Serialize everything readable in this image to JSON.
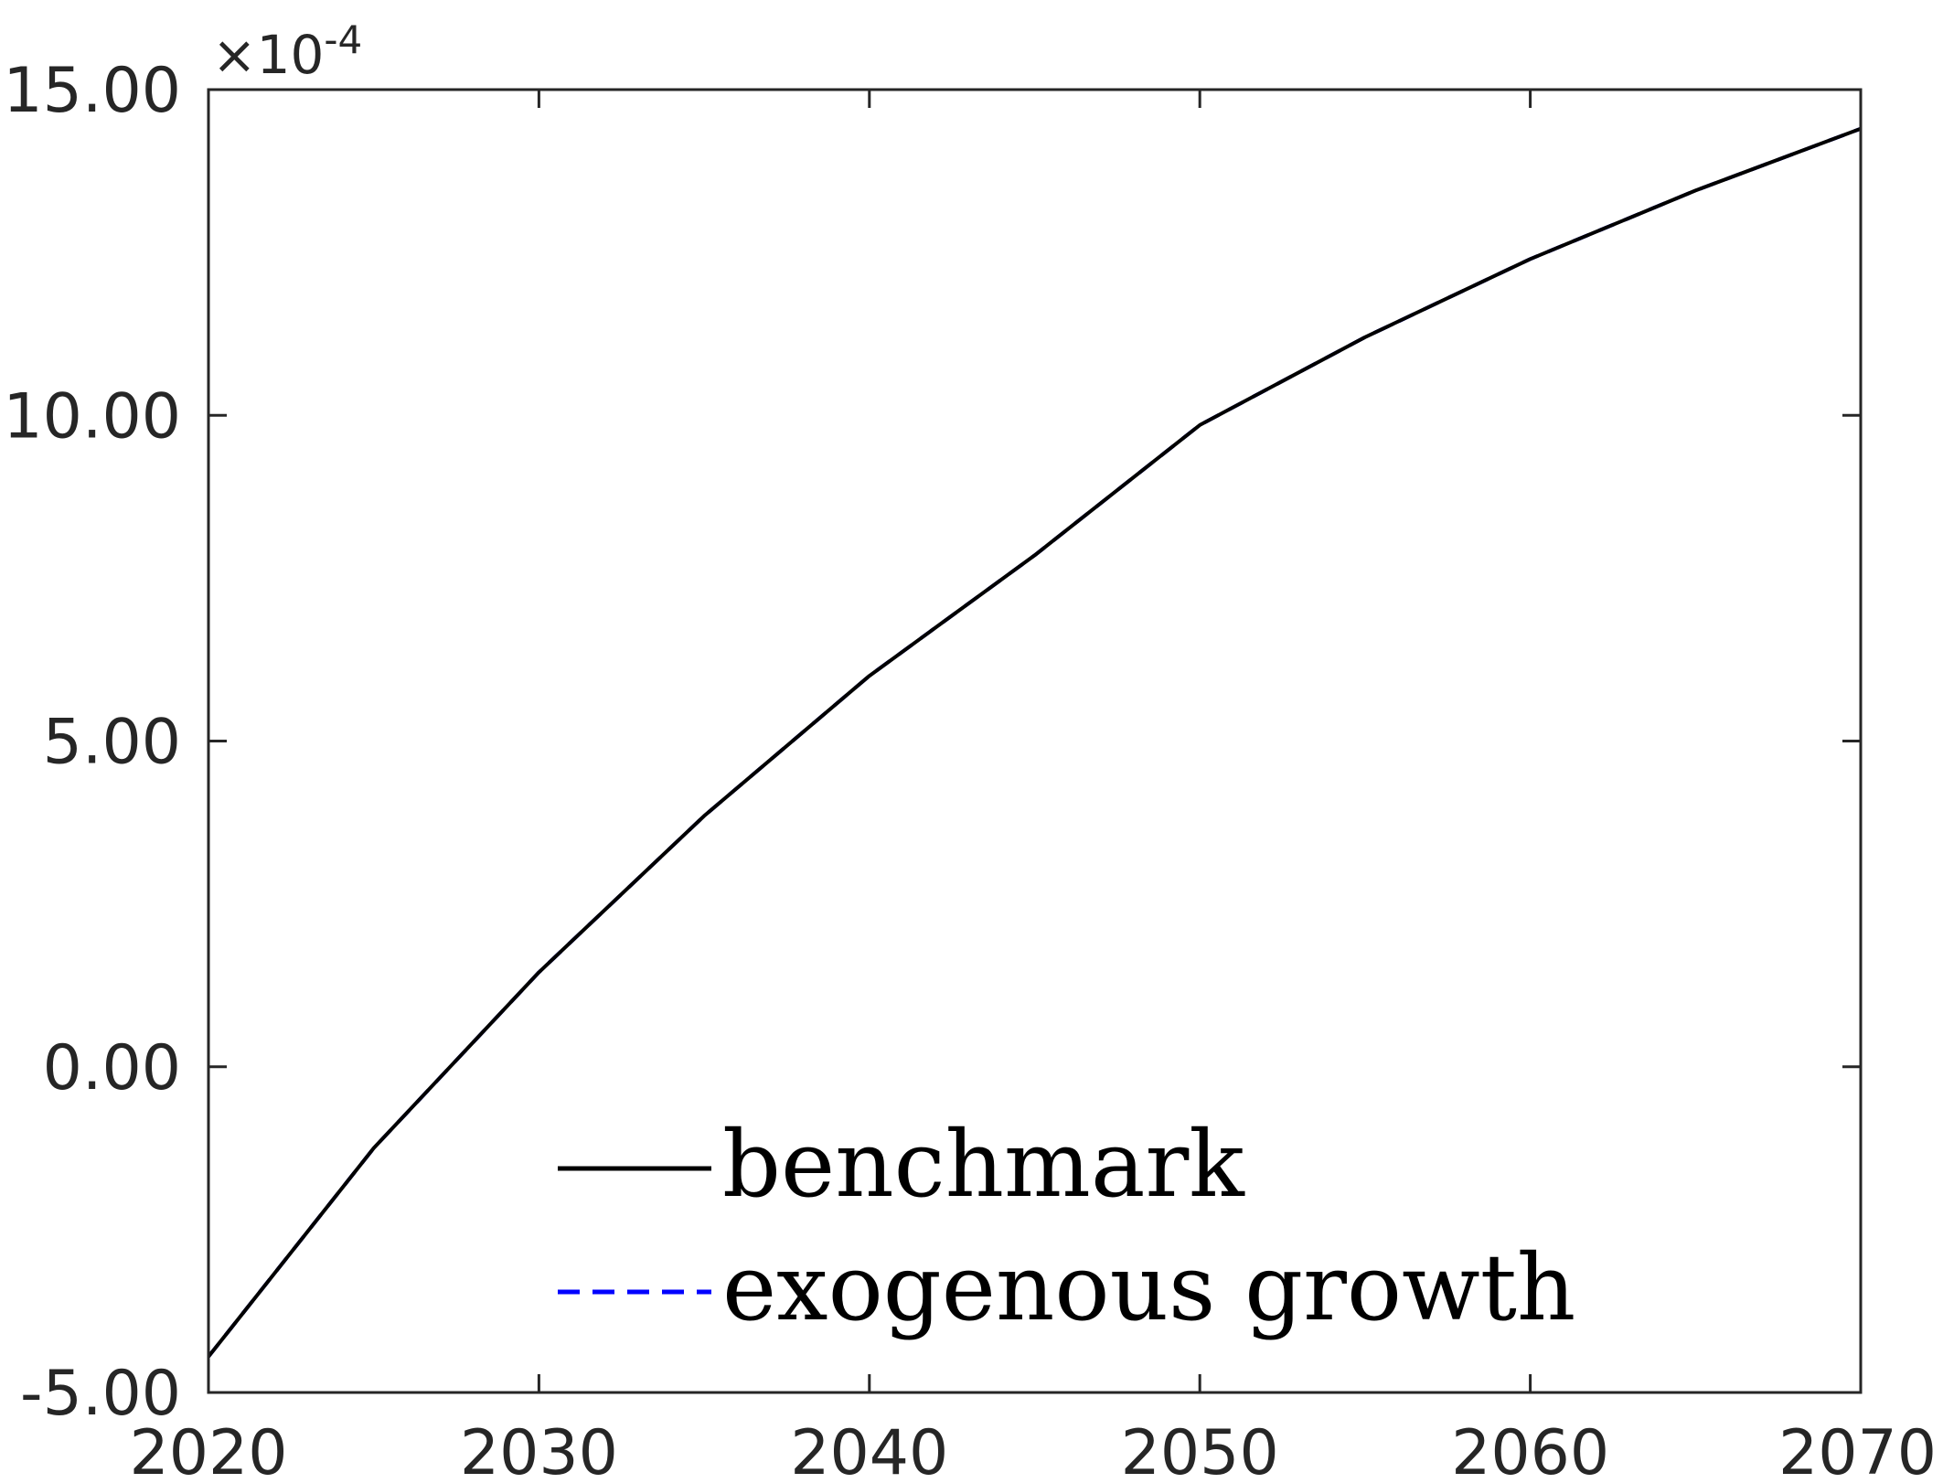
{
  "chart_data": {
    "type": "line",
    "title": "",
    "xlabel": "",
    "ylabel": "",
    "y_exponent_label": {
      "base": "×10",
      "power": "-4"
    },
    "x": [
      2020,
      2025,
      2030,
      2035,
      2040,
      2045,
      2050,
      2055,
      2060,
      2065,
      2070
    ],
    "xlim": [
      2020,
      2070
    ],
    "ylim": [
      -5,
      15
    ],
    "y_scale_note": "values in units of 1e-4",
    "x_ticks": [
      2020,
      2030,
      2040,
      2050,
      2060,
      2070
    ],
    "x_tick_labels": [
      "2020",
      "2030",
      "2040",
      "2050",
      "2060",
      "2070"
    ],
    "y_ticks": [
      -5,
      0,
      5,
      10,
      15
    ],
    "y_tick_labels": [
      "-5.00",
      "0.00",
      "5.00",
      "10.00",
      "15.00"
    ],
    "grid": false,
    "legend_position": "bottom-center",
    "series": [
      {
        "name": "benchmark",
        "color": "#000000",
        "style": "solid",
        "values": [
          -4.45,
          -1.25,
          1.45,
          3.85,
          6.0,
          7.85,
          9.85,
          11.2,
          12.4,
          13.45,
          14.4
        ]
      },
      {
        "name": "exogenous growth",
        "color": "#0000ff",
        "style": "dashed",
        "values": [
          -4.45,
          -1.25,
          1.45,
          3.85,
          6.0,
          7.85,
          9.85,
          11.2,
          12.4,
          13.45,
          14.4
        ]
      }
    ]
  }
}
